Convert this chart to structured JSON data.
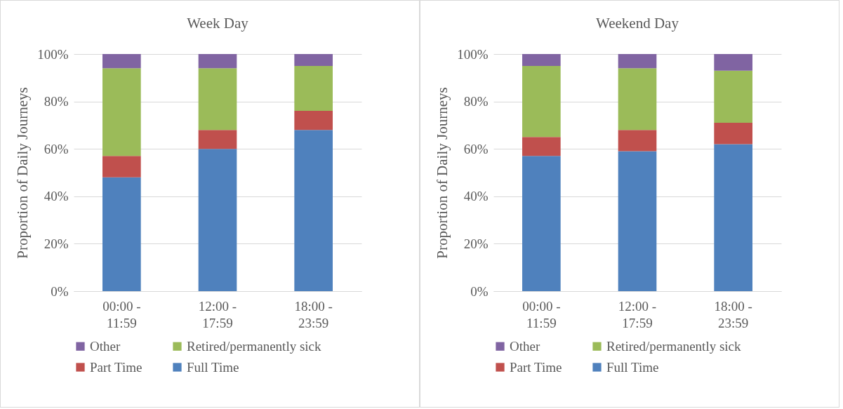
{
  "chart_data": [
    {
      "type": "bar",
      "stacked": true,
      "title": "Week Day",
      "ylabel": "Proportion of Daily Journeys",
      "categories": [
        "00:00 - 11:59",
        "12:00 - 17:59",
        "18:00 - 23:59"
      ],
      "series": [
        {
          "name": "Full Time",
          "color": "#4f81bd",
          "values": [
            48,
            60,
            68
          ]
        },
        {
          "name": "Part Time",
          "color": "#c0504d",
          "values": [
            9,
            8,
            8
          ]
        },
        {
          "name": "Retired/permanently sick",
          "color": "#9bbb59",
          "values": [
            37,
            26,
            19
          ]
        },
        {
          "name": "Other",
          "color": "#8064a2",
          "values": [
            6,
            6,
            5
          ]
        }
      ],
      "ylim": [
        0,
        100
      ],
      "yticks": [
        {
          "value": 0,
          "label": "0%"
        },
        {
          "value": 20,
          "label": "20%"
        },
        {
          "value": 40,
          "label": "40%"
        },
        {
          "value": 60,
          "label": "60%"
        },
        {
          "value": 80,
          "label": "80%"
        },
        {
          "value": 100,
          "label": "100%"
        }
      ],
      "grid": "y",
      "legend": "bottom"
    },
    {
      "type": "bar",
      "stacked": true,
      "title": "Weekend Day",
      "ylabel": "Proportion of Daily Journeys",
      "categories": [
        "00:00 - 11:59",
        "12:00 - 17:59",
        "18:00 - 23:59"
      ],
      "series": [
        {
          "name": "Full Time",
          "color": "#4f81bd",
          "values": [
            57,
            59,
            62
          ]
        },
        {
          "name": "Part Time",
          "color": "#c0504d",
          "values": [
            8,
            9,
            9
          ]
        },
        {
          "name": "Retired/permanently sick",
          "color": "#9bbb59",
          "values": [
            30,
            26,
            22
          ]
        },
        {
          "name": "Other",
          "color": "#8064a2",
          "values": [
            5,
            6,
            7
          ]
        }
      ],
      "ylim": [
        0,
        100
      ],
      "yticks": [
        {
          "value": 0,
          "label": "0%"
        },
        {
          "value": 20,
          "label": "20%"
        },
        {
          "value": 40,
          "label": "40%"
        },
        {
          "value": 60,
          "label": "60%"
        },
        {
          "value": 80,
          "label": "80%"
        },
        {
          "value": 100,
          "label": "100%"
        }
      ],
      "grid": "y",
      "legend": "bottom"
    }
  ]
}
